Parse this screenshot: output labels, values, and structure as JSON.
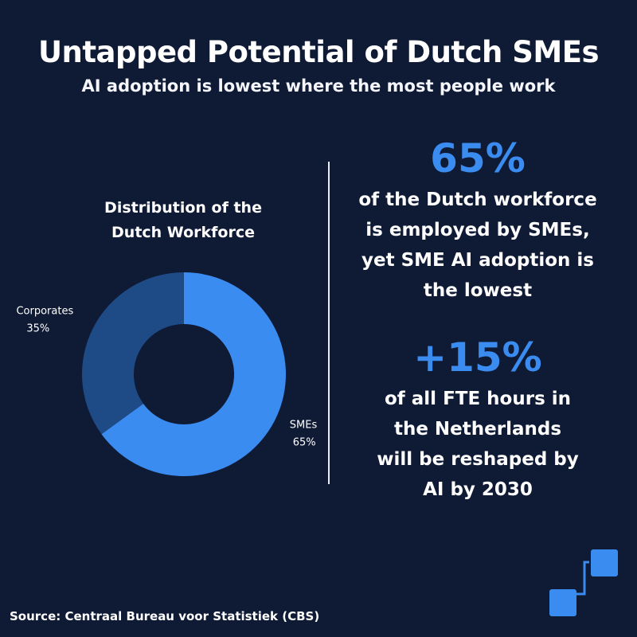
{
  "header": {
    "title": "Untapped Potential of Dutch SMEs",
    "subtitle": "AI adoption is lowest where the most people work"
  },
  "chart_data": {
    "type": "pie",
    "style": "donut",
    "title_lines": [
      "Distribution of the",
      "Dutch Workforce"
    ],
    "slices": [
      {
        "label": "SMEs",
        "value": 65,
        "value_label": "65%",
        "color": "#3b8cf0"
      },
      {
        "label": "Corporates",
        "value": 35,
        "value_label": "35%",
        "color": "#1e4a86"
      }
    ]
  },
  "stats": [
    {
      "value": "65%",
      "lines": [
        "of the Dutch workforce",
        "is employed by SMEs,",
        "yet SME AI adoption is",
        "the lowest"
      ]
    },
    {
      "value": "+15%",
      "lines": [
        "of all FTE hours in",
        "the Netherlands",
        "will be reshaped by",
        "AI by 2030"
      ]
    }
  ],
  "footer": {
    "source": "Source: Centraal Bureau voor Statistiek (CBS)"
  },
  "colors": {
    "background": "#0f1a35",
    "accent": "#3b8cf0",
    "accent_dark": "#1e4a86"
  },
  "logo": {
    "icon": "connected-squares-icon"
  }
}
